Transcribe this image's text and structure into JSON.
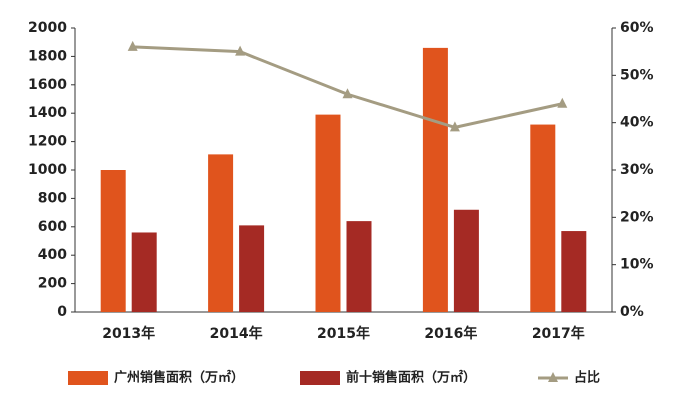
{
  "chart_data": {
    "type": "bar",
    "categories": [
      "2013年",
      "2014年",
      "2015年",
      "2016年",
      "2017年"
    ],
    "series": [
      {
        "name": "广州销售面积（万㎡）",
        "color": "#e0541d",
        "values": [
          1000,
          1110,
          1390,
          1860,
          1320
        ]
      },
      {
        "name": "前十销售面积（万㎡）",
        "color": "#a52a24",
        "values": [
          560,
          610,
          640,
          720,
          570
        ]
      },
      {
        "name": "占比",
        "color": "#a49c82",
        "type": "line",
        "axis": "y2",
        "values": [
          56,
          55,
          46,
          39,
          44
        ]
      }
    ],
    "ylim": [
      0,
      2000
    ],
    "yticks": [
      0,
      200,
      400,
      600,
      800,
      1000,
      1200,
      1400,
      1600,
      1800,
      2000
    ],
    "y2lim": [
      0,
      60
    ],
    "y2ticks": [
      {
        "value": 0,
        "label": "0%"
      },
      {
        "value": 10,
        "label": "10%"
      },
      {
        "value": 20,
        "label": "20%"
      },
      {
        "value": 30,
        "label": "30%"
      },
      {
        "value": 40,
        "label": "40%"
      },
      {
        "value": 50,
        "label": "50%"
      },
      {
        "value": 60,
        "label": "60%"
      }
    ],
    "grid": false,
    "legend": "bottom"
  }
}
